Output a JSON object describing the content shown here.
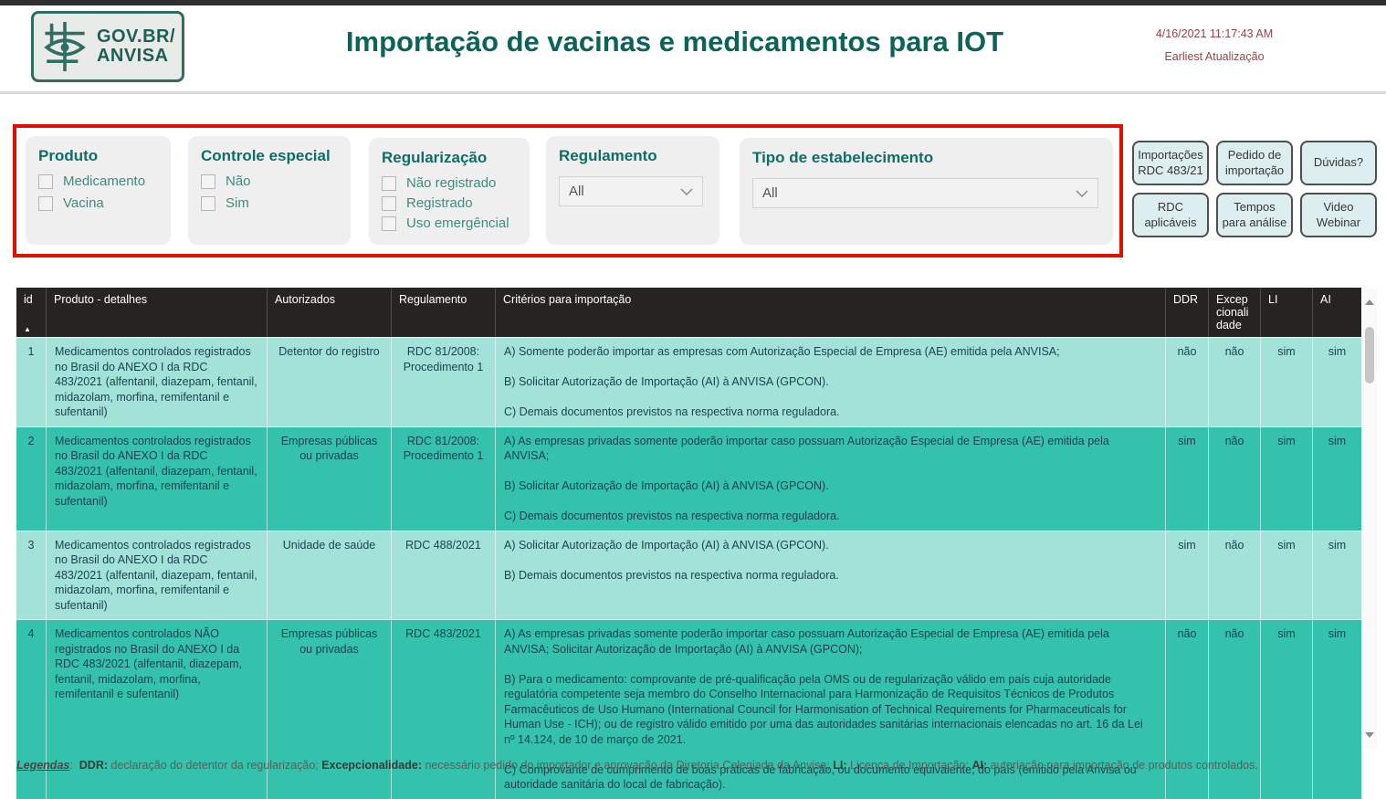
{
  "header": {
    "logo_line1": "GOV.BR/",
    "logo_line2": "ANVISA",
    "title": "Importação de vacinas e medicamentos para IOT",
    "timestamp": "4/16/2021 11:17:43 AM",
    "update_label": "Earliest Atualização"
  },
  "filters": {
    "produto": {
      "title": "Produto",
      "options": [
        "Medicamento",
        "Vacina"
      ]
    },
    "controle_especial": {
      "title": "Controle especial",
      "options": [
        "Não",
        "Sim"
      ]
    },
    "regularizacao": {
      "title": "Regularização",
      "options": [
        "Não registrado",
        "Registrado",
        "Uso emergêncial"
      ]
    },
    "regulamento": {
      "title": "Regulamento",
      "value": "All"
    },
    "tipo_estabelecimento": {
      "title": "Tipo de estabelecimento",
      "value": "All"
    }
  },
  "buttons": [
    "Importações RDC 483/21",
    "Pedido de importação",
    "Dúvidas?",
    "RDC aplicáveis",
    "Tempos para análise",
    "Video Webinar"
  ],
  "table": {
    "columns": [
      "id",
      "Produto - detalhes",
      "Autorizados",
      "Regulamento",
      "Critérios para importação",
      "DDR",
      "Excepcionalidade",
      "LI",
      "AI"
    ],
    "sort_icon": "▲",
    "rows": [
      {
        "id": "1",
        "produto": "Medicamentos controlados registrados no Brasil do ANEXO I da RDC 483/2021 (alfentanil, diazepam, fentanil, midazolam, morfina, remifentanil e sufentanil)",
        "autorizados": "Detentor do registro",
        "regulamento": "RDC 81/2008: Procedimento 1",
        "criterios": "A) Somente poderão importar as empresas com Autorização Especial de Empresa (AE) emitida pela ANVISA;\n\nB) Solicitar Autorização de Importação (AI) à ANVISA (GPCON).\n\nC) Demais documentos previstos na respectiva norma reguladora.",
        "ddr": "não",
        "excepcionalidade": "não",
        "li": "sim",
        "ai": "sim"
      },
      {
        "id": "2",
        "produto": "Medicamentos controlados registrados no Brasil do ANEXO I da RDC 483/2021 (alfentanil, diazepam, fentanil, midazolam, morfina, remifentanil e sufentanil)",
        "autorizados": "Empresas públicas ou privadas",
        "regulamento": "RDC 81/2008: Procedimento 1",
        "criterios": "A) As empresas privadas somente poderão importar caso possuam Autorização Especial de Empresa (AE) emitida pela ANVISA;\n\nB) Solicitar Autorização de Importação (AI) à ANVISA (GPCON).\n\nC) Demais documentos previstos na respectiva norma reguladora.",
        "ddr": "sim",
        "excepcionalidade": "não",
        "li": "sim",
        "ai": "sim"
      },
      {
        "id": "3",
        "produto": "Medicamentos controlados registrados no Brasil do ANEXO I da RDC 483/2021 (alfentanil, diazepam, fentanil, midazolam, morfina, remifentanil e sufentanil)",
        "autorizados": "Unidade de saúde",
        "regulamento": "RDC 488/2021",
        "criterios": "A) Solicitar Autorização de Importação (AI) à ANVISA (GPCON).\n\nB) Demais documentos previstos na respectiva norma reguladora.",
        "ddr": "sim",
        "excepcionalidade": "não",
        "li": "sim",
        "ai": "sim"
      },
      {
        "id": "4",
        "produto": "Medicamentos controlados NÃO registrados no Brasil do ANEXO I da RDC 483/2021 (alfentanil, diazepam, fentanil, midazolam, morfina, remifentanil e sufentanil)",
        "autorizados": "Empresas públicas ou privadas",
        "regulamento": "RDC 483/2021",
        "criterios": "A) As empresas privadas somente poderão importar caso possuam Autorização Especial de Empresa (AE) emitida pela ANVISA; Solicitar Autorização de Importação (AI) à ANVISA (GPCON);\n\nB) Para o medicamento: comprovante de pré-qualificação pela OMS ou de regularização válido em país cuja autoridade regulatória competente seja membro do Conselho Internacional para Harmonização de Requisitos Técnicos de Produtos Farmacêuticos de Uso Humano (International Council for Harmonisation of Technical Requirements for Pharmaceuticals for Human Use - ICH); ou de registro válido emitido por uma das autoridades sanitárias internacionais elencadas no art. 16 da Lei nº 14.124, de 10 de março de 2021.\n\nC) Comprovante de cumprimento de boas práticas de fabricação, ou documento equivalente, do país (emitido pela Anvisa ou autoridade sanitária do local de fabricação).",
        "ddr": "não",
        "excepcionalidade": "não",
        "li": "sim",
        "ai": "sim"
      }
    ]
  },
  "legend": {
    "label": "Legendas",
    "items": [
      {
        "term": "DDR",
        "desc": "declaração do detentor da regularização"
      },
      {
        "term": "Excepcionalidade",
        "desc": "necessário pedido do importador e aprovação da Diretoria Colegiada da Anvisa"
      },
      {
        "term": "LI",
        "desc": "Licença de Importação"
      },
      {
        "term": "AI",
        "desc": "autoriação para importação de produtos controlados"
      }
    ]
  },
  "colors": {
    "accent_teal_dark": "#0d635a",
    "row_light": "#a2e2d9",
    "row_dark": "#34c2ac",
    "table_header_bg": "#252423",
    "filter_border_red": "#e01000",
    "timestamp_red": "#a33f47",
    "button_bg": "#ddeef0"
  }
}
